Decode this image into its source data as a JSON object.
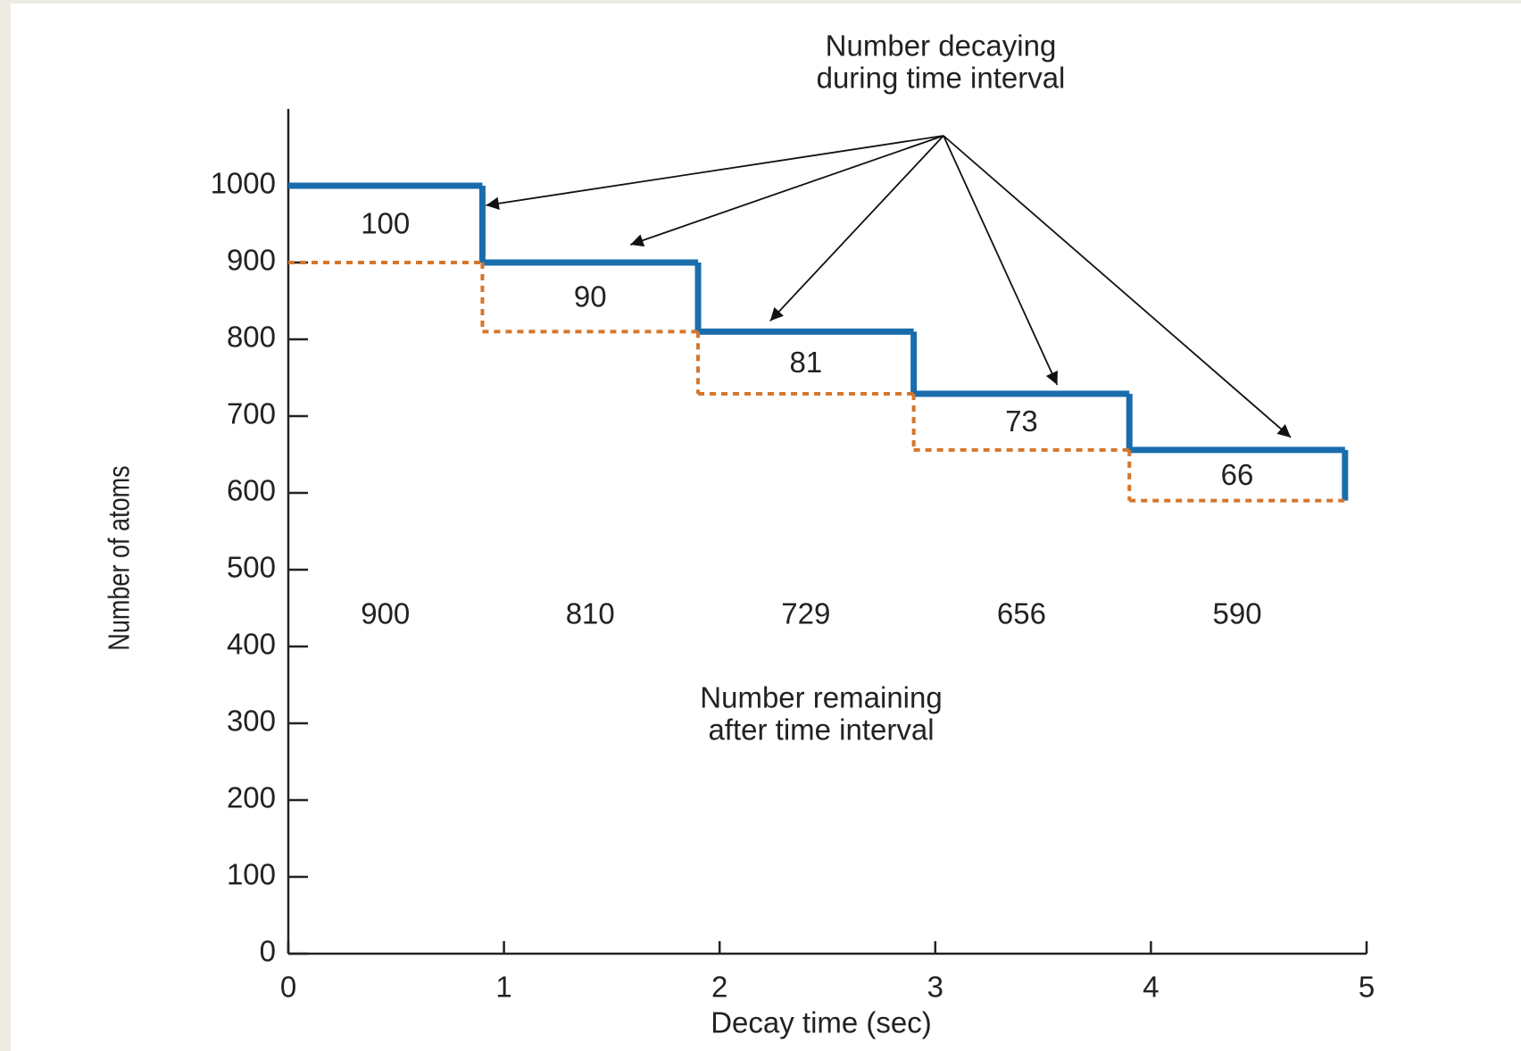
{
  "chart_data": {
    "type": "step",
    "annotations": [
      {
        "lines": [
          "Number decaying",
          "during time interval"
        ]
      },
      {
        "lines": [
          "Number remaining",
          "after time interval"
        ]
      }
    ],
    "y_label": "Number of atoms",
    "x_label": "Decay time (sec)",
    "x_edges": [
      0,
      0.9,
      1.9,
      2.9,
      3.9,
      4.9
    ],
    "series": [
      {
        "color": "#1a6dad",
        "style": "solid",
        "values": [
          1000,
          900,
          810,
          729,
          656
        ]
      },
      {
        "color": "#d5762c",
        "style": "dotted",
        "values": [
          900,
          810,
          729,
          656,
          590
        ]
      }
    ],
    "decayed": [
      100,
      90,
      81,
      73,
      66
    ],
    "xlim": [
      0,
      5
    ],
    "xticks": [
      0,
      1,
      2,
      3,
      4,
      5
    ],
    "ylim": [
      0,
      1100
    ],
    "yticks": [
      0,
      100,
      200,
      300,
      400,
      500,
      600,
      700,
      800,
      900,
      1000
    ]
  }
}
